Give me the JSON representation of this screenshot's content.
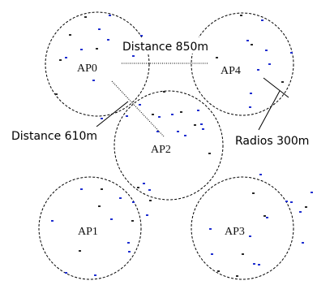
{
  "diagram": {
    "access_points": [
      {
        "id": "ap0",
        "label": "AP0"
      },
      {
        "id": "ap4",
        "label": "AP4"
      },
      {
        "id": "ap2",
        "label": "AP2"
      },
      {
        "id": "ap1",
        "label": "AP1"
      },
      {
        "id": "ap3",
        "label": "AP3"
      }
    ],
    "annotations": {
      "distance_horizontal": "Distance 850m",
      "distance_diagonal": "Distance 610m",
      "radius": "Radios 300m"
    },
    "colors": {
      "circle_stroke": "#000000",
      "node_blue": "#1f2fd0",
      "node_dark": "#2a2a2a"
    }
  }
}
